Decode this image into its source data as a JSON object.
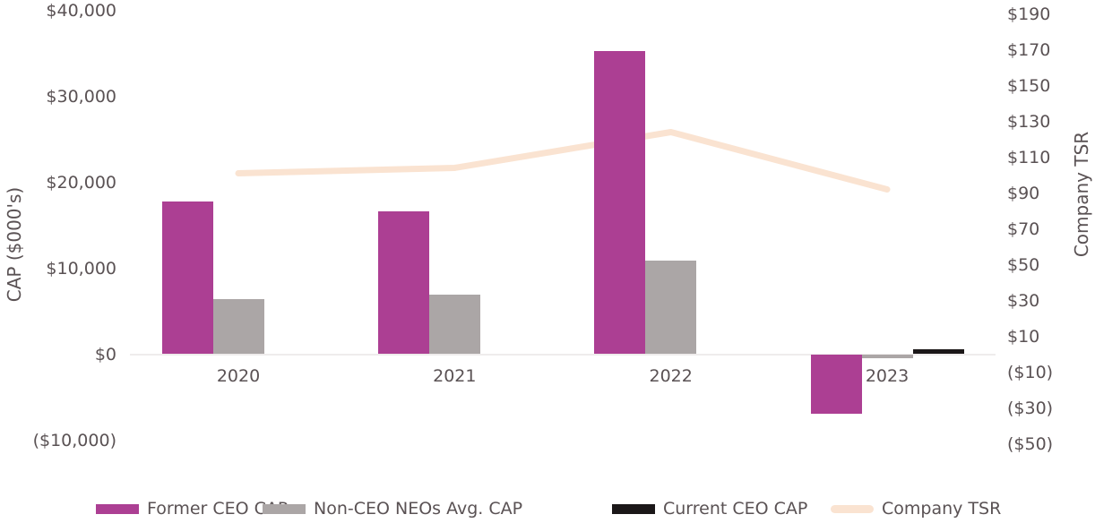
{
  "chart_data": {
    "type": "combo-bar-line",
    "categories": [
      "2020",
      "2021",
      "2022",
      "2023"
    ],
    "bar_series": [
      {
        "name": "Former CEO CAP",
        "color": "#AC3F93",
        "values": [
          17800,
          16600,
          35300,
          -6900
        ]
      },
      {
        "name": "Non-CEO NEOs Avg. CAP",
        "color": "#ABA6A6",
        "values": [
          6400,
          6900,
          10900,
          -500
        ]
      },
      {
        "name": "Current CEO CAP",
        "color": "#1B1718",
        "values": [
          0,
          0,
          0,
          600
        ]
      }
    ],
    "line_series": [
      {
        "name": "Company TSR",
        "color": "#FAE3D1",
        "axis": "right",
        "values": [
          101,
          104,
          124,
          92
        ]
      }
    ],
    "left_axis": {
      "title": "CAP ($000's)",
      "max": 40000,
      "min": -10000,
      "step": 10000,
      "ticks": [
        "$40,000",
        "$30,000",
        "$20,000",
        "$10,000",
        "$0",
        "($10,000)"
      ]
    },
    "right_axis": {
      "title": "Company TSR",
      "max": 190,
      "min": -50,
      "step": 20,
      "ticks": [
        "$190",
        "$170",
        "$150",
        "$130",
        "$110",
        "$90",
        "$70",
        "$50",
        "$30",
        "$10",
        "($10)",
        "($30)",
        "($50)"
      ]
    },
    "legend": [
      {
        "label": "Former CEO CAP",
        "color": "#AC3F93",
        "type": "bar"
      },
      {
        "label": "Non-CEO NEOs Avg. CAP",
        "color": "#ABA6A6",
        "type": "bar"
      },
      {
        "label": "Current CEO CAP",
        "color": "#1B1718",
        "type": "bar"
      },
      {
        "label": "Company TSR",
        "color": "#FAE3D1",
        "type": "line"
      }
    ],
    "grid": "zero-line-only",
    "legend_position": "bottom",
    "text_color": "#5A5254",
    "zero_line_color": "#EFECEC"
  }
}
